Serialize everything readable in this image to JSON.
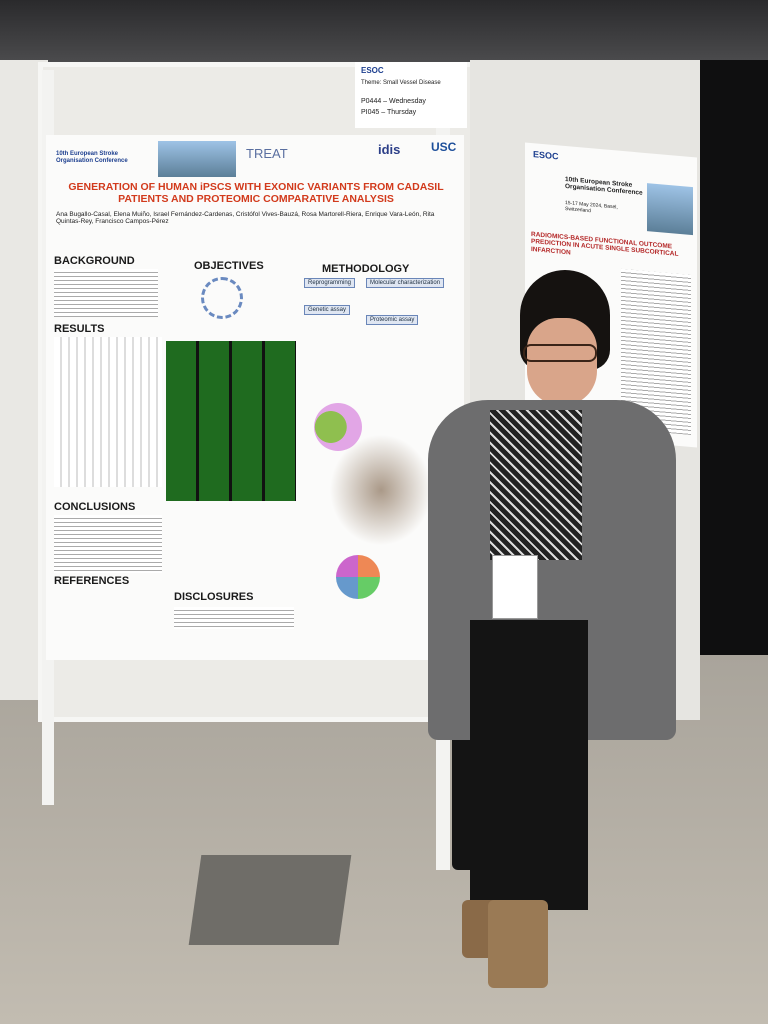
{
  "poster_left": {
    "conference": "10th European Stroke Organisation Conference",
    "logo_treat": "TREAT",
    "logo_idis": "idis",
    "logo_usc": "USC",
    "title": "GENERATION OF HUMAN iPSCS WITH EXONIC VARIANTS FROM CADASIL PATIENTS AND PROTEOMIC COMPARATIVE ANALYSIS",
    "authors": "Ana Bugallo-Casal, Elena Muiño, Israel Fernández-Cardenas, Cristófol Vives-Bauzá, Rosa Martorell-Riera, Enrique Vara-León, Rita Quintas-Rey, Francisco Campos-Pérez",
    "sections": {
      "background": "BACKGROUND",
      "objectives": "OBJECTIVES",
      "methodology": "METHODOLOGY",
      "results": "RESULTS",
      "conclusions": "CONCLUSIONS",
      "references": "REFERENCES",
      "disclosures": "DISCLOSURES"
    },
    "methods": [
      "Reprogramming",
      "Molecular characterization",
      "Genetic assay",
      "Proteomic assay"
    ]
  },
  "sign": {
    "brand": "ESOC",
    "theme": "Theme: Small Vessel Disease",
    "slot1": "P0444 – Wednesday",
    "slot2": "PI045 – Thursday"
  },
  "poster_right": {
    "brand": "ESOC",
    "conference": "10th European Stroke Organisation Conference",
    "dates": "15-17 May 2024, Basel, Switzerland",
    "title": "RADIOMICS-BASED FUNCTIONAL OUTCOME PREDICTION IN ACUTE SINGLE SUBCORTICAL INFARCTION"
  }
}
